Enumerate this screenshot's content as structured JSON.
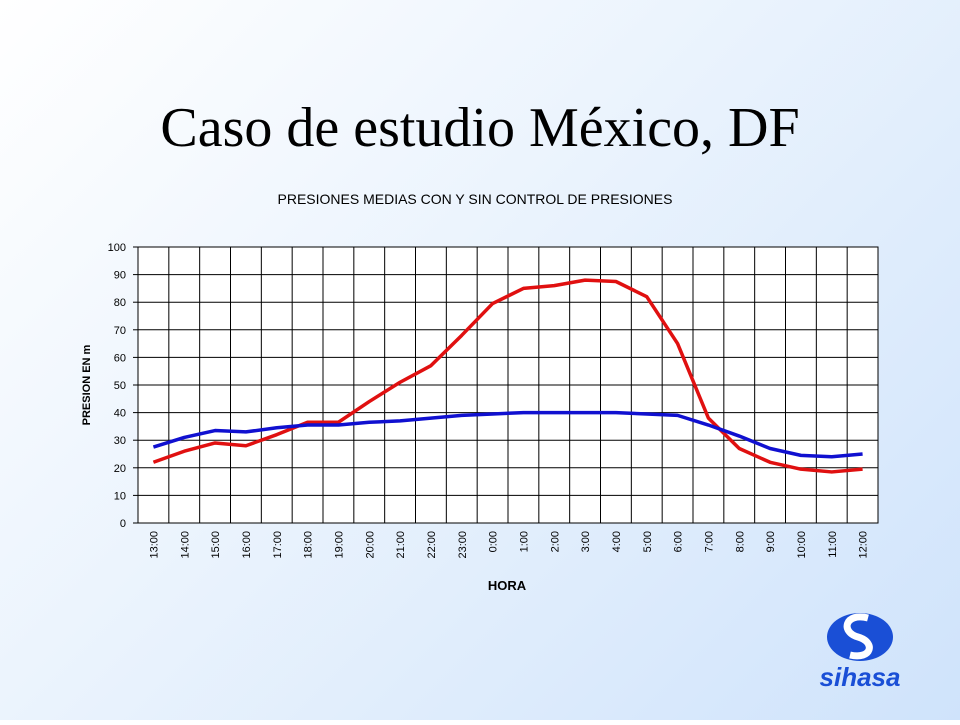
{
  "slide_title": "Caso de estudio México, DF",
  "logo": "sihasa",
  "chart_data": {
    "type": "line",
    "title": "PRESIONES MEDIAS CON Y SIN CONTROL DE PRESIONES",
    "x_label": "HORA",
    "y_label": "PRESION EN m",
    "categories": [
      "13:00",
      "14:00",
      "15:00",
      "16:00",
      "17:00",
      "18:00",
      "19:00",
      "20:00",
      "21:00",
      "22:00",
      "23:00",
      "0:00",
      "1:00",
      "2:00",
      "3:00",
      "4:00",
      "5:00",
      "6:00",
      "7:00",
      "8:00",
      "9:00",
      "10:00",
      "11:00",
      "12:00"
    ],
    "series": [
      {
        "color": "#e01010",
        "values": [
          22,
          26,
          29,
          28,
          32,
          36.5,
          36.5,
          44,
          51,
          57,
          68,
          79.5,
          85,
          86,
          88,
          87.5,
          82,
          65,
          38,
          27,
          22,
          19.5,
          18.5,
          19.5
        ]
      },
      {
        "color": "#1010d0",
        "values": [
          27.5,
          31,
          33.5,
          33,
          34.5,
          35.5,
          35.5,
          36.5,
          37,
          38,
          39,
          39.5,
          40,
          40,
          40,
          40,
          39.5,
          39,
          35.5,
          31.5,
          27,
          24.5,
          24,
          25
        ]
      }
    ],
    "ylim": [
      0,
      100
    ],
    "yticks": [
      0,
      10,
      20,
      30,
      40,
      50,
      60,
      70,
      80,
      90,
      100
    ],
    "grid": true
  }
}
